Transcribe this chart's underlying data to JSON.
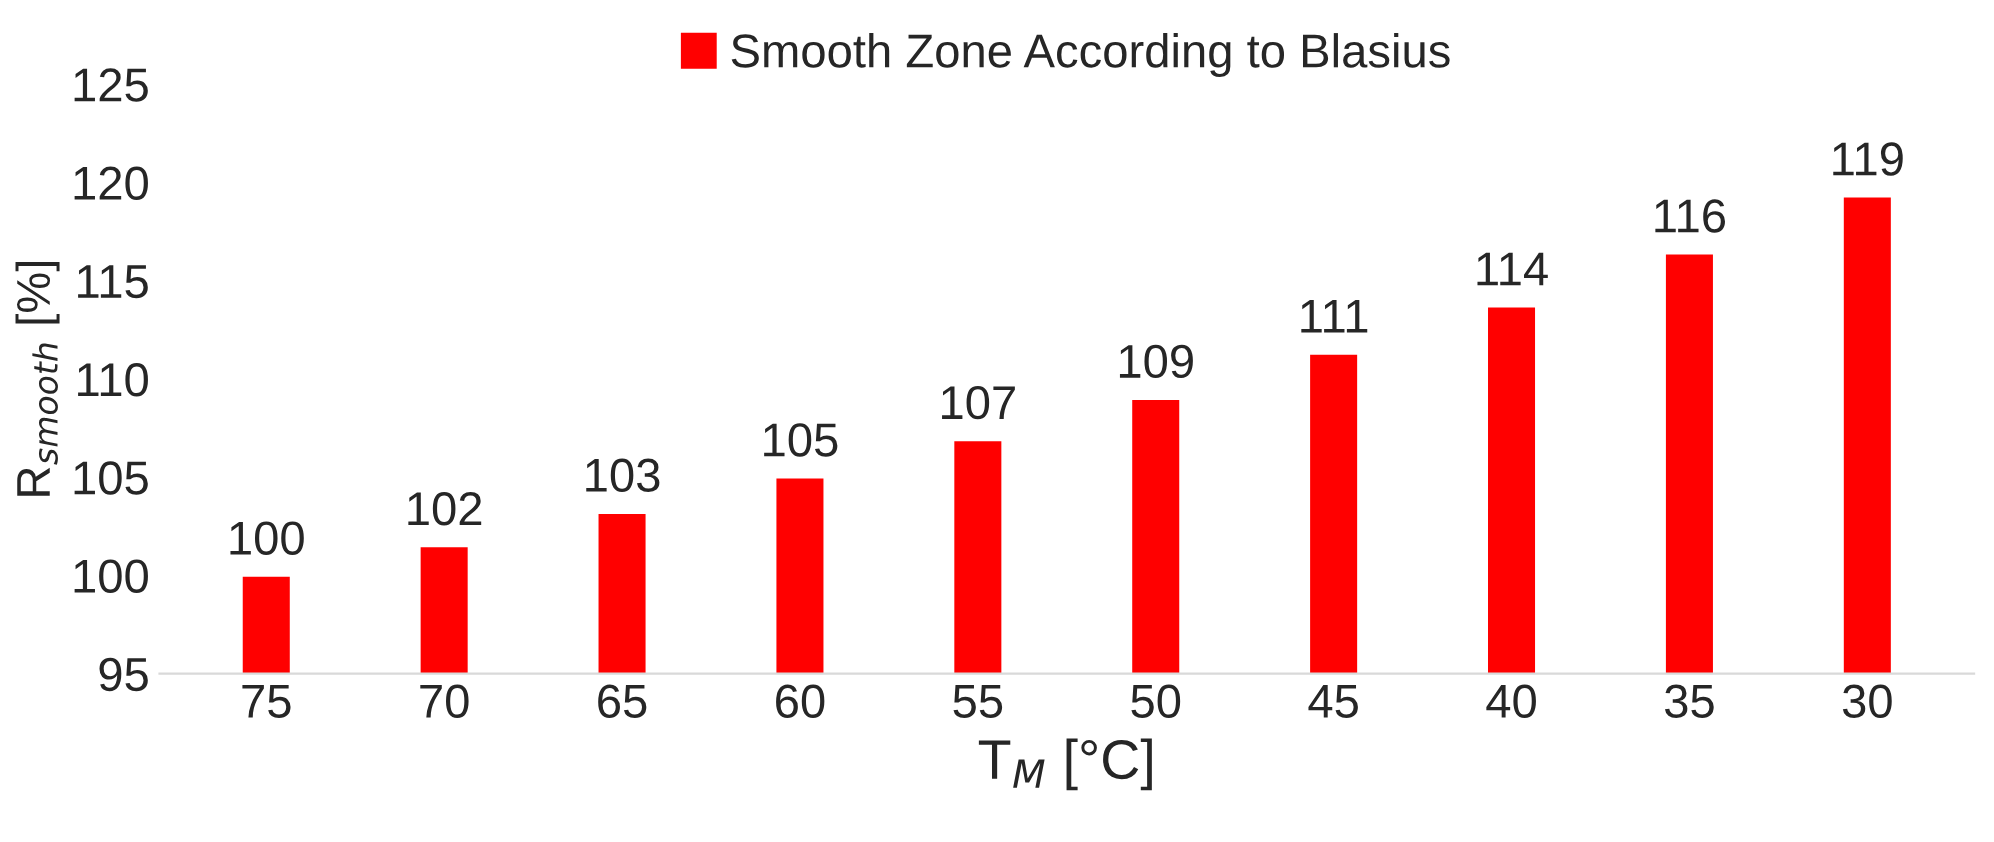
{
  "chart_data": {
    "type": "bar",
    "xlabel": "T$_{M}$ [°C]",
    "ylabel": "R$_{smooth}$ [%]",
    "categories": [
      "75",
      "70",
      "65",
      "60",
      "55",
      "50",
      "45",
      "40",
      "35",
      "30"
    ],
    "series": [
      {
        "name": "Smooth Zone According to Blasius",
        "color": "#ff0000",
        "values": [
          100,
          101.5,
          103.2,
          105.0,
          106.9,
          109.0,
          111.3,
          113.7,
          116.4,
          119.3
        ],
        "value_labels": [
          "100",
          "102",
          "103",
          "105",
          "107",
          "109",
          "111",
          "114",
          "116",
          "119"
        ]
      }
    ],
    "ylim": [
      95,
      125
    ],
    "yticks": [
      95,
      100,
      105,
      110,
      115,
      120,
      125
    ],
    "grid": false,
    "legend": "top"
  }
}
